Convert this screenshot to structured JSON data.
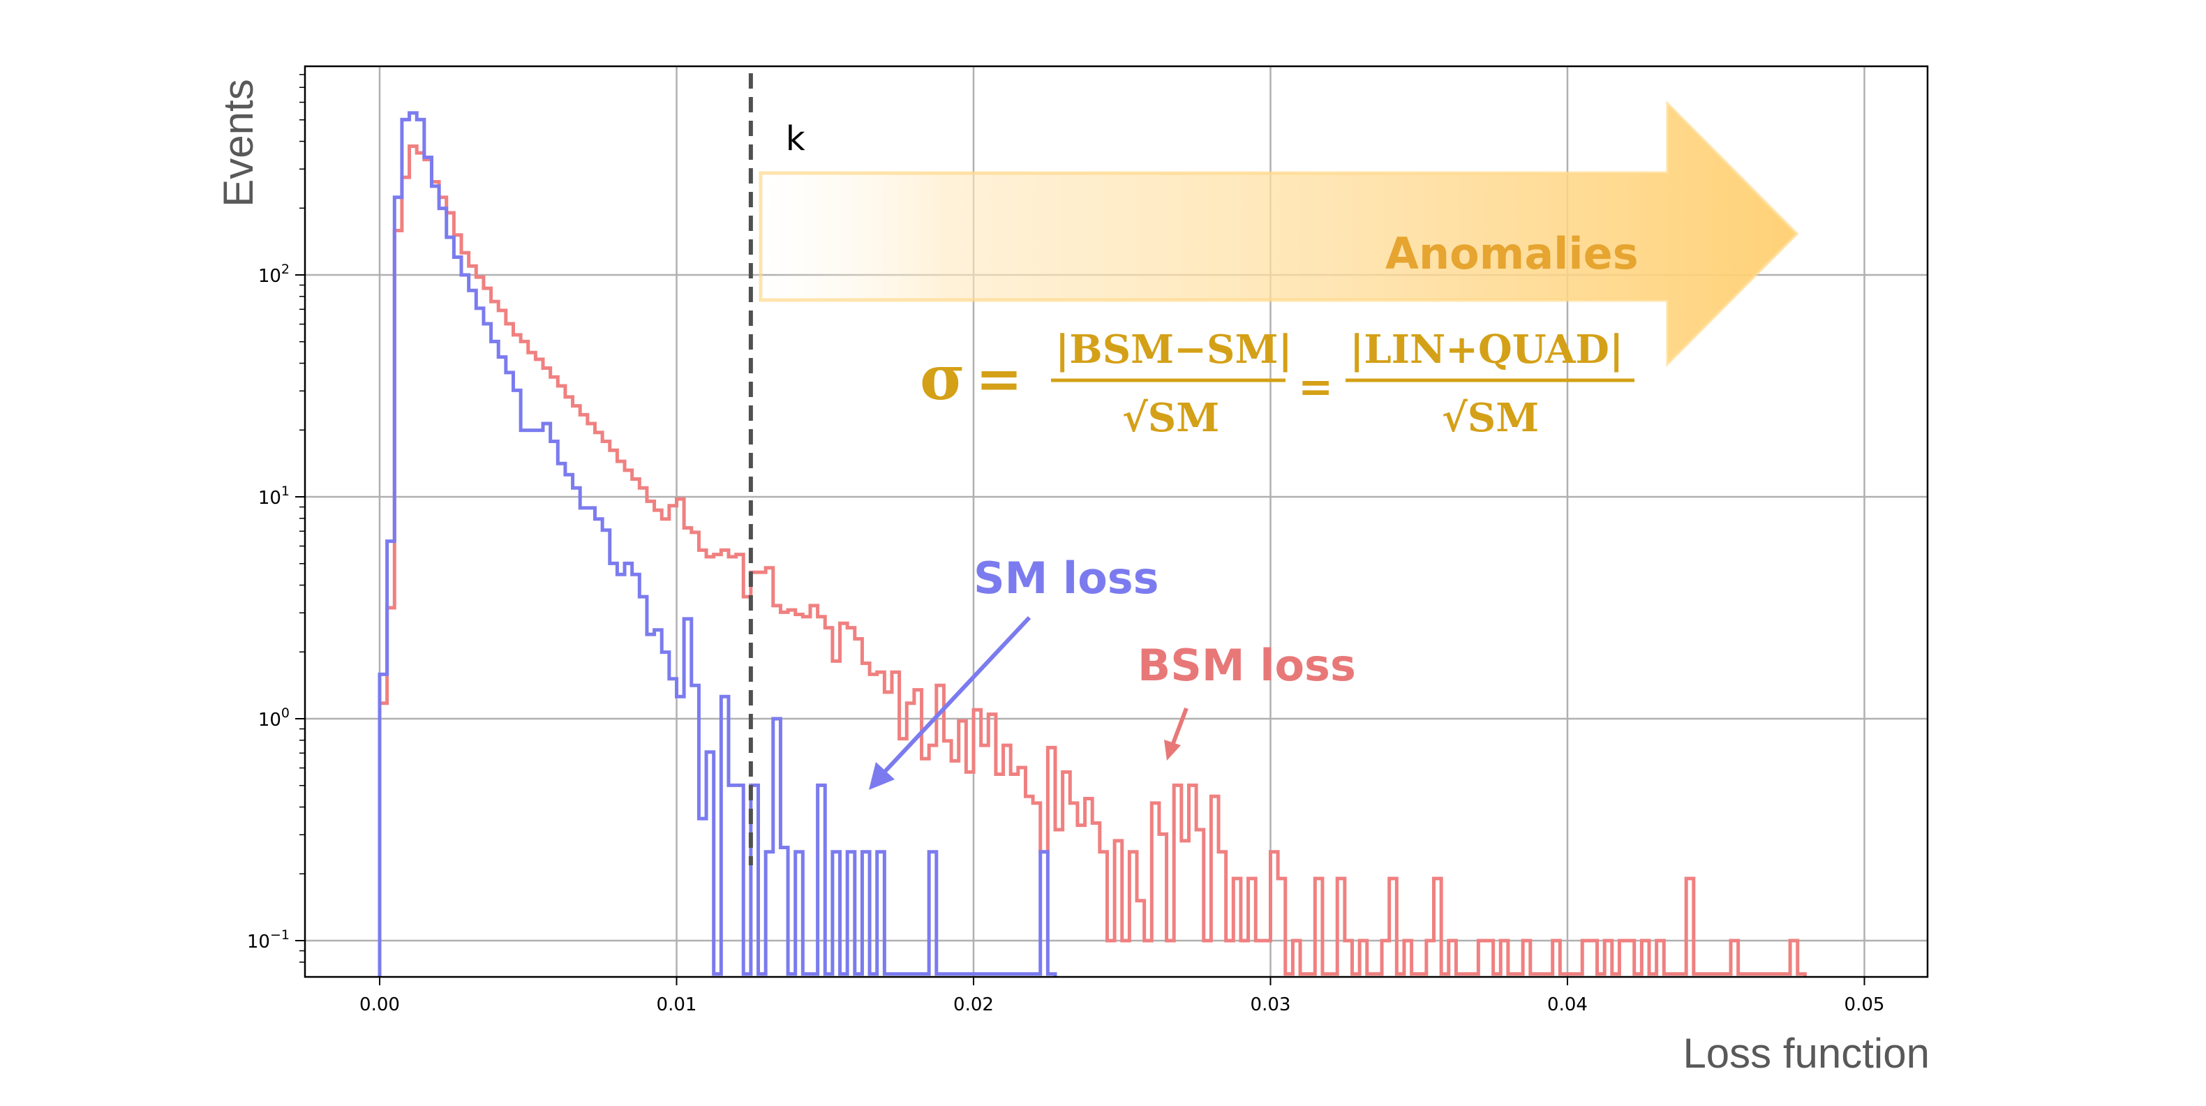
{
  "chart_data": {
    "type": "histogram",
    "xlabel": "Loss function",
    "ylabel": "Events",
    "xlim": [
      -0.0025,
      0.0525
    ],
    "ylim_log10": [
      -1.15,
      0.92
    ],
    "yscale": "log",
    "grid": true,
    "x_ticks": [
      {
        "value": 0.0,
        "label": "0.00"
      },
      {
        "value": 0.01,
        "label": "0.01"
      },
      {
        "value": 0.02,
        "label": "0.02"
      },
      {
        "value": 0.03,
        "label": "0.03"
      },
      {
        "value": 0.04,
        "label": "0.04"
      },
      {
        "value": 0.05,
        "label": "0.05"
      }
    ],
    "y_ticks": [
      {
        "log10": -1,
        "base": "10",
        "exp": "−1"
      },
      {
        "log10": 0,
        "base": "10",
        "exp": "0"
      },
      {
        "log10": 1,
        "base": "10",
        "exp": "1"
      },
      {
        "log10": 2,
        "base": "10",
        "exp": "2"
      }
    ],
    "threshold": {
      "x": 0.0125,
      "label": "k",
      "color": "#505050"
    },
    "series": [
      {
        "name": "BSM loss",
        "color": "#f08080",
        "points": [
          [
            0.0,
            0.07
          ],
          [
            0.00025,
            0.5
          ],
          [
            0.0005,
            2.2
          ],
          [
            0.00075,
            2.44
          ],
          [
            0.001,
            2.58
          ],
          [
            0.00125,
            2.55
          ],
          [
            0.0015,
            2.52
          ],
          [
            0.00175,
            2.42
          ],
          [
            0.002,
            2.35
          ],
          [
            0.00225,
            2.28
          ],
          [
            0.0025,
            2.18
          ],
          [
            0.00275,
            2.1
          ],
          [
            0.003,
            2.04
          ],
          [
            0.00325,
            1.99
          ],
          [
            0.0035,
            1.94
          ],
          [
            0.00375,
            1.88
          ],
          [
            0.004,
            1.84
          ],
          [
            0.00425,
            1.78
          ],
          [
            0.0045,
            1.73
          ],
          [
            0.00475,
            1.7
          ],
          [
            0.005,
            1.65
          ],
          [
            0.00525,
            1.62
          ],
          [
            0.0055,
            1.58
          ],
          [
            0.00575,
            1.54
          ],
          [
            0.006,
            1.5
          ],
          [
            0.00625,
            1.45
          ],
          [
            0.0065,
            1.41
          ],
          [
            0.00675,
            1.37
          ],
          [
            0.007,
            1.33
          ],
          [
            0.00725,
            1.29
          ],
          [
            0.0075,
            1.25
          ],
          [
            0.00775,
            1.21
          ],
          [
            0.008,
            1.16
          ],
          [
            0.00825,
            1.12
          ],
          [
            0.0085,
            1.08
          ],
          [
            0.00875,
            1.04
          ],
          [
            0.009,
            0.98
          ],
          [
            0.00925,
            0.94
          ],
          [
            0.0095,
            0.9
          ],
          [
            0.00975,
            0.96
          ],
          [
            0.01,
            0.99
          ],
          [
            0.01025,
            0.86
          ],
          [
            0.0105,
            0.84
          ],
          [
            0.01075,
            0.76
          ],
          [
            0.011,
            0.73
          ],
          [
            0.01125,
            0.74
          ],
          [
            0.0115,
            0.76
          ],
          [
            0.01175,
            0.73
          ],
          [
            0.012,
            0.74
          ],
          [
            0.01225,
            0.55
          ],
          [
            0.0125,
            0.66
          ],
          [
            0.01275,
            0.66
          ],
          [
            0.013,
            0.68
          ],
          [
            0.01325,
            0.51
          ],
          [
            0.0135,
            0.48
          ],
          [
            0.01375,
            0.49
          ],
          [
            0.014,
            0.47
          ],
          [
            0.01425,
            0.46
          ],
          [
            0.0145,
            0.51
          ],
          [
            0.01475,
            0.46
          ],
          [
            0.015,
            0.41
          ],
          [
            0.01525,
            0.26
          ],
          [
            0.0155,
            0.43
          ],
          [
            0.01575,
            0.41
          ],
          [
            0.016,
            0.36
          ],
          [
            0.01625,
            0.25
          ],
          [
            0.0165,
            0.2
          ],
          [
            0.01675,
            0.21
          ],
          [
            0.017,
            0.12
          ],
          [
            0.01725,
            0.21
          ],
          [
            0.0175,
            -0.09
          ],
          [
            0.01775,
            0.07
          ],
          [
            0.018,
            0.13
          ],
          [
            0.01825,
            -0.18
          ],
          [
            0.0185,
            -0.12
          ],
          [
            0.01875,
            0.15
          ],
          [
            0.019,
            -0.1
          ],
          [
            0.01925,
            -0.19
          ],
          [
            0.0195,
            -0.01
          ],
          [
            0.01975,
            -0.24
          ],
          [
            0.02,
            0.04
          ],
          [
            0.02025,
            -0.12
          ],
          [
            0.0205,
            0.02
          ],
          [
            0.02075,
            -0.25
          ],
          [
            0.021,
            -0.12
          ],
          [
            0.02125,
            -0.25
          ],
          [
            0.0215,
            -0.22
          ],
          [
            0.02175,
            -0.35
          ],
          [
            0.022,
            -0.38
          ],
          [
            0.02225,
            -0.6
          ],
          [
            0.0225,
            -0.13
          ],
          [
            0.02275,
            -0.5
          ],
          [
            0.023,
            -0.24
          ],
          [
            0.02325,
            -0.38
          ],
          [
            0.0235,
            -0.48
          ],
          [
            0.02375,
            -0.36
          ],
          [
            0.024,
            -0.47
          ],
          [
            0.02425,
            -0.6
          ],
          [
            0.0245,
            -1.0
          ],
          [
            0.02475,
            -0.55
          ],
          [
            0.025,
            -1.0
          ],
          [
            0.02525,
            -0.6
          ],
          [
            0.0255,
            -0.82
          ],
          [
            0.02575,
            -1.0
          ],
          [
            0.026,
            -0.38
          ],
          [
            0.02625,
            -0.52
          ],
          [
            0.0265,
            -1.0
          ],
          [
            0.02675,
            -0.3
          ],
          [
            0.027,
            -0.55
          ],
          [
            0.02725,
            -0.3
          ],
          [
            0.0275,
            -0.5
          ],
          [
            0.02775,
            -1.0
          ],
          [
            0.028,
            -0.35
          ],
          [
            0.02825,
            -0.6
          ],
          [
            0.0285,
            -1.0
          ],
          [
            0.02875,
            -0.72
          ],
          [
            0.029,
            -1.0
          ],
          [
            0.02925,
            -0.72
          ],
          [
            0.0295,
            -1.0
          ],
          [
            0.02975,
            -1.0
          ],
          [
            0.03,
            -0.6
          ],
          [
            0.03025,
            -0.72
          ],
          [
            0.0305,
            -1.15
          ],
          [
            0.03075,
            -1.0
          ],
          [
            0.031,
            -1.15
          ],
          [
            0.03125,
            -1.15
          ],
          [
            0.0315,
            -0.72
          ],
          [
            0.03175,
            -1.15
          ],
          [
            0.032,
            -1.15
          ],
          [
            0.03225,
            -0.72
          ],
          [
            0.0325,
            -1.0
          ],
          [
            0.03275,
            -1.15
          ],
          [
            0.033,
            -1.0
          ],
          [
            0.03325,
            -1.15
          ],
          [
            0.0335,
            -1.15
          ],
          [
            0.03375,
            -1.0
          ],
          [
            0.034,
            -0.72
          ],
          [
            0.03425,
            -1.15
          ],
          [
            0.0345,
            -1.0
          ],
          [
            0.03475,
            -1.15
          ],
          [
            0.035,
            -1.15
          ],
          [
            0.03525,
            -1.0
          ],
          [
            0.0355,
            -0.72
          ],
          [
            0.03575,
            -1.15
          ],
          [
            0.036,
            -1.0
          ],
          [
            0.03625,
            -1.15
          ],
          [
            0.0365,
            -1.15
          ],
          [
            0.03675,
            -1.15
          ],
          [
            0.037,
            -1.0
          ],
          [
            0.03725,
            -1.0
          ],
          [
            0.0375,
            -1.15
          ],
          [
            0.03775,
            -1.0
          ],
          [
            0.038,
            -1.15
          ],
          [
            0.03825,
            -1.15
          ],
          [
            0.0385,
            -1.0
          ],
          [
            0.03875,
            -1.15
          ],
          [
            0.039,
            -1.15
          ],
          [
            0.03925,
            -1.15
          ],
          [
            0.0395,
            -1.0
          ],
          [
            0.03975,
            -1.15
          ],
          [
            0.04,
            -1.15
          ],
          [
            0.04025,
            -1.15
          ],
          [
            0.0405,
            -1.0
          ],
          [
            0.04075,
            -1.0
          ],
          [
            0.041,
            -1.15
          ],
          [
            0.04125,
            -1.0
          ],
          [
            0.0415,
            -1.15
          ],
          [
            0.04175,
            -1.0
          ],
          [
            0.042,
            -1.0
          ],
          [
            0.04225,
            -1.15
          ],
          [
            0.0425,
            -1.0
          ],
          [
            0.04275,
            -1.15
          ],
          [
            0.043,
            -1.0
          ],
          [
            0.04325,
            -1.15
          ],
          [
            0.0435,
            -1.15
          ],
          [
            0.04375,
            -1.15
          ],
          [
            0.044,
            -0.72
          ],
          [
            0.04425,
            -1.15
          ],
          [
            0.0445,
            -1.15
          ],
          [
            0.04475,
            -1.15
          ],
          [
            0.045,
            -1.15
          ],
          [
            0.04525,
            -1.15
          ],
          [
            0.0455,
            -1.0
          ],
          [
            0.04575,
            -1.15
          ],
          [
            0.046,
            -1.15
          ],
          [
            0.04625,
            -1.15
          ],
          [
            0.0465,
            -1.15
          ],
          [
            0.04675,
            -1.15
          ],
          [
            0.047,
            -1.15
          ],
          [
            0.04725,
            -1.15
          ],
          [
            0.0475,
            -1.0
          ],
          [
            0.04775,
            -1.15
          ]
        ]
      },
      {
        "name": "SM loss",
        "color": "#7b7bef",
        "points": [
          [
            0.0,
            0.2
          ],
          [
            0.00025,
            0.8
          ],
          [
            0.0005,
            2.35
          ],
          [
            0.00075,
            2.7
          ],
          [
            0.001,
            2.73
          ],
          [
            0.00125,
            2.7
          ],
          [
            0.0015,
            2.53
          ],
          [
            0.00175,
            2.4
          ],
          [
            0.002,
            2.3
          ],
          [
            0.00225,
            2.17
          ],
          [
            0.0025,
            2.08
          ],
          [
            0.00275,
            2.0
          ],
          [
            0.003,
            1.93
          ],
          [
            0.00325,
            1.85
          ],
          [
            0.0035,
            1.78
          ],
          [
            0.00375,
            1.7
          ],
          [
            0.004,
            1.63
          ],
          [
            0.00425,
            1.56
          ],
          [
            0.0045,
            1.48
          ],
          [
            0.00475,
            1.3
          ],
          [
            0.005,
            1.3
          ],
          [
            0.00525,
            1.3
          ],
          [
            0.0055,
            1.33
          ],
          [
            0.00575,
            1.25
          ],
          [
            0.006,
            1.15
          ],
          [
            0.00625,
            1.1
          ],
          [
            0.0065,
            1.04
          ],
          [
            0.00675,
            0.95
          ],
          [
            0.007,
            0.95
          ],
          [
            0.00725,
            0.9
          ],
          [
            0.0075,
            0.85
          ],
          [
            0.00775,
            0.7
          ],
          [
            0.008,
            0.65
          ],
          [
            0.00825,
            0.7
          ],
          [
            0.0085,
            0.65
          ],
          [
            0.00875,
            0.55
          ],
          [
            0.009,
            0.38
          ],
          [
            0.00925,
            0.4
          ],
          [
            0.0095,
            0.3
          ],
          [
            0.00975,
            0.18
          ],
          [
            0.01,
            0.1
          ],
          [
            0.01025,
            0.45
          ],
          [
            0.0105,
            0.15
          ],
          [
            0.01075,
            -0.45
          ],
          [
            0.011,
            -0.15
          ],
          [
            0.01125,
            -1.15
          ],
          [
            0.0115,
            0.1
          ],
          [
            0.01175,
            -0.3
          ],
          [
            0.012,
            -0.3
          ],
          [
            0.01225,
            -1.15
          ],
          [
            0.0125,
            -0.3
          ],
          [
            0.01275,
            -1.15
          ],
          [
            0.013,
            -0.6
          ],
          [
            0.01325,
            0.0
          ],
          [
            0.0135,
            -0.58
          ],
          [
            0.01375,
            -1.15
          ],
          [
            0.014,
            -0.6
          ],
          [
            0.01425,
            -1.15
          ],
          [
            0.0145,
            -1.15
          ],
          [
            0.01475,
            -0.3
          ],
          [
            0.015,
            -1.15
          ],
          [
            0.01525,
            -0.6
          ],
          [
            0.0155,
            -1.15
          ],
          [
            0.01575,
            -0.6
          ],
          [
            0.016,
            -1.15
          ],
          [
            0.01625,
            -0.6
          ],
          [
            0.0165,
            -1.15
          ],
          [
            0.01675,
            -0.6
          ],
          [
            0.017,
            -1.15
          ],
          [
            0.01725,
            -1.15
          ],
          [
            0.0175,
            -1.15
          ],
          [
            0.01775,
            -1.15
          ],
          [
            0.018,
            -1.15
          ],
          [
            0.01825,
            -1.15
          ],
          [
            0.0185,
            -0.6
          ],
          [
            0.01875,
            -1.15
          ],
          [
            0.019,
            -1.15
          ],
          [
            0.01925,
            -1.15
          ],
          [
            0.0195,
            -1.15
          ],
          [
            0.01975,
            -1.15
          ],
          [
            0.02,
            -1.15
          ],
          [
            0.02025,
            -1.15
          ],
          [
            0.0205,
            -1.15
          ],
          [
            0.02075,
            -1.15
          ],
          [
            0.021,
            -1.15
          ],
          [
            0.02125,
            -1.15
          ],
          [
            0.0215,
            -1.15
          ],
          [
            0.02175,
            -1.15
          ],
          [
            0.022,
            -1.15
          ],
          [
            0.02225,
            -0.6
          ],
          [
            0.0225,
            -1.15
          ]
        ]
      }
    ],
    "annotations": {
      "anomalies": {
        "text": "Anomalies",
        "color": "#e6a430"
      },
      "sm_loss": {
        "text": "SM loss",
        "color": "#7b7bef"
      },
      "bsm_loss": {
        "text": "BSM loss",
        "color": "#e87878"
      },
      "formula": {
        "sigma": "σ",
        "equals": "=",
        "num1": "|BSM−SM|",
        "den1": "√SM",
        "num2": "|LIN+QUAD|",
        "den2": "√SM"
      }
    }
  }
}
